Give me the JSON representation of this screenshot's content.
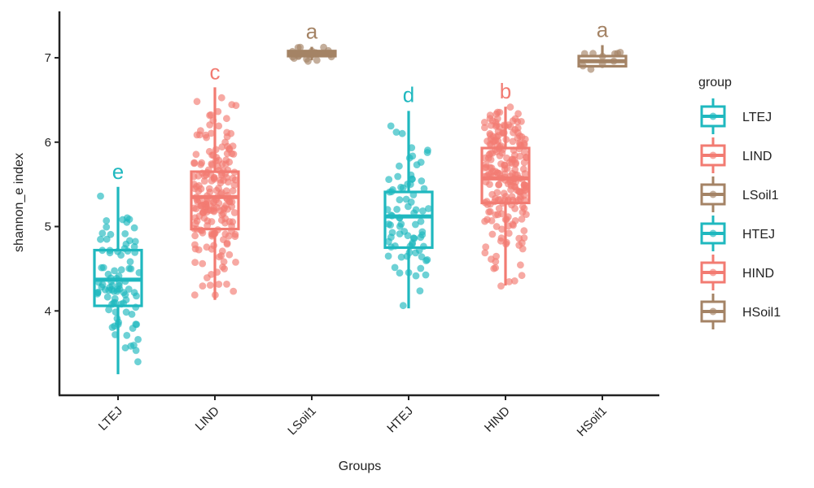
{
  "chart_data": {
    "type": "boxplot",
    "xlabel": "Groups",
    "ylabel": "shannon_e index",
    "ylim": [
      3.0,
      7.55
    ],
    "yticks": [
      4,
      5,
      6,
      7
    ],
    "grid": false,
    "legend": {
      "title": "group",
      "placement": "right",
      "entries": [
        "LTEJ",
        "LIND",
        "LSoil1",
        "HTEJ",
        "HIND",
        "HSoil1"
      ]
    },
    "colors": {
      "LTEJ": "#1fb8bf",
      "LIND": "#f27b72",
      "LSoil1": "#a48365",
      "HTEJ": "#1fb8bf",
      "HIND": "#f27b72",
      "HSoil1": "#a48365"
    },
    "categories": [
      "LTEJ",
      "LIND",
      "LSoil1",
      "HTEJ",
      "HIND",
      "HSoil1"
    ],
    "boxes": [
      {
        "group": "LTEJ",
        "whisker_low": 3.25,
        "q1": 4.06,
        "median": 4.37,
        "q3": 4.72,
        "whisker_high": 5.47,
        "n": 90,
        "letter": "e",
        "range": [
          3.25,
          5.47
        ]
      },
      {
        "group": "LIND",
        "whisker_low": 4.13,
        "q1": 4.97,
        "median": 5.35,
        "q3": 5.65,
        "whisker_high": 6.65,
        "n": 200,
        "letter": "c",
        "range": [
          3.72,
          6.65
        ]
      },
      {
        "group": "LSoil1",
        "whisker_low": 6.97,
        "q1": 7.02,
        "median": 7.05,
        "q3": 7.08,
        "whisker_high": 7.13,
        "n": 20,
        "letter": "a",
        "range": [
          6.87,
          7.13
        ]
      },
      {
        "group": "HTEJ",
        "whisker_low": 4.03,
        "q1": 4.75,
        "median": 5.12,
        "q3": 5.41,
        "whisker_high": 6.37,
        "n": 80,
        "letter": "d",
        "range": [
          4.0,
          6.38
        ]
      },
      {
        "group": "HIND",
        "whisker_low": 4.3,
        "q1": 5.28,
        "median": 5.57,
        "q3": 5.93,
        "whisker_high": 6.42,
        "n": 220,
        "letter": "b",
        "range": [
          3.85,
          6.42
        ]
      },
      {
        "group": "HSoil1",
        "whisker_low": 6.88,
        "q1": 6.9,
        "median": 6.96,
        "q3": 7.02,
        "whisker_high": 7.15,
        "n": 10,
        "letter": "a",
        "range": [
          6.6,
          7.15
        ]
      }
    ]
  }
}
